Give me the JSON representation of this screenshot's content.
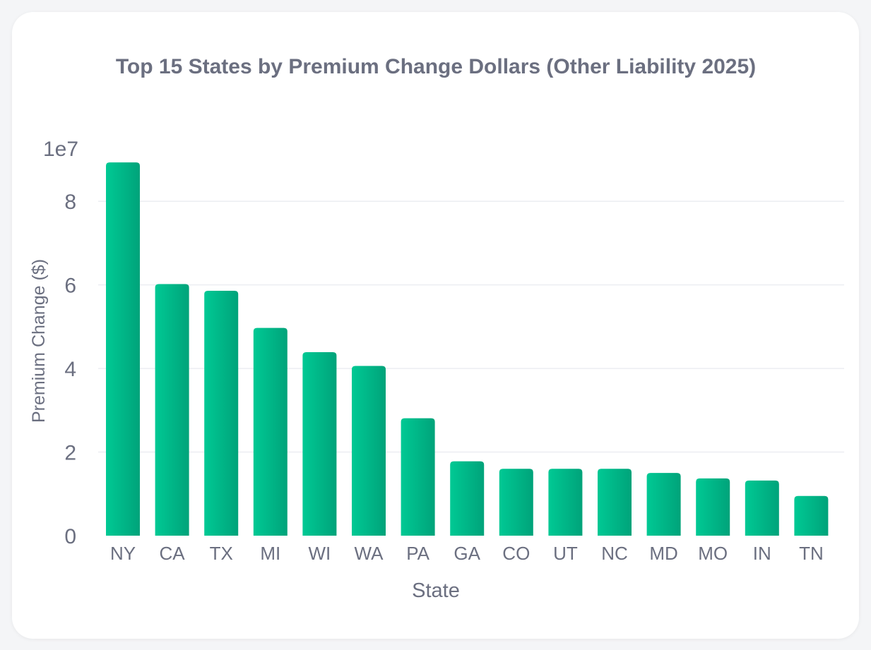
{
  "chart_data": {
    "type": "bar",
    "title": "Top 15 States by Premium Change Dollars (Other Liability 2025)",
    "xlabel": "State",
    "ylabel": "Premium Change ($)",
    "y_multiplier_label": "1e7",
    "categories": [
      "NY",
      "CA",
      "TX",
      "MI",
      "WI",
      "WA",
      "PA",
      "GA",
      "CO",
      "UT",
      "NC",
      "MD",
      "MO",
      "IN",
      "TN"
    ],
    "values": [
      89300000,
      60200000,
      58600000,
      49700000,
      43900000,
      40600000,
      28100000,
      17800000,
      16000000,
      16000000,
      16000000,
      15000000,
      13700000,
      13200000,
      9500000
    ],
    "ylim": [
      0,
      90000000
    ],
    "yticks": [
      0,
      20000000,
      40000000,
      60000000,
      80000000
    ],
    "ytick_labels": [
      "0",
      "2",
      "4",
      "6",
      "8"
    ],
    "grid": true,
    "colors": {
      "bar_light": "#00c994",
      "bar_dark": "#00a37a",
      "text": "#6b6f80",
      "grid": "#eceef2"
    }
  }
}
